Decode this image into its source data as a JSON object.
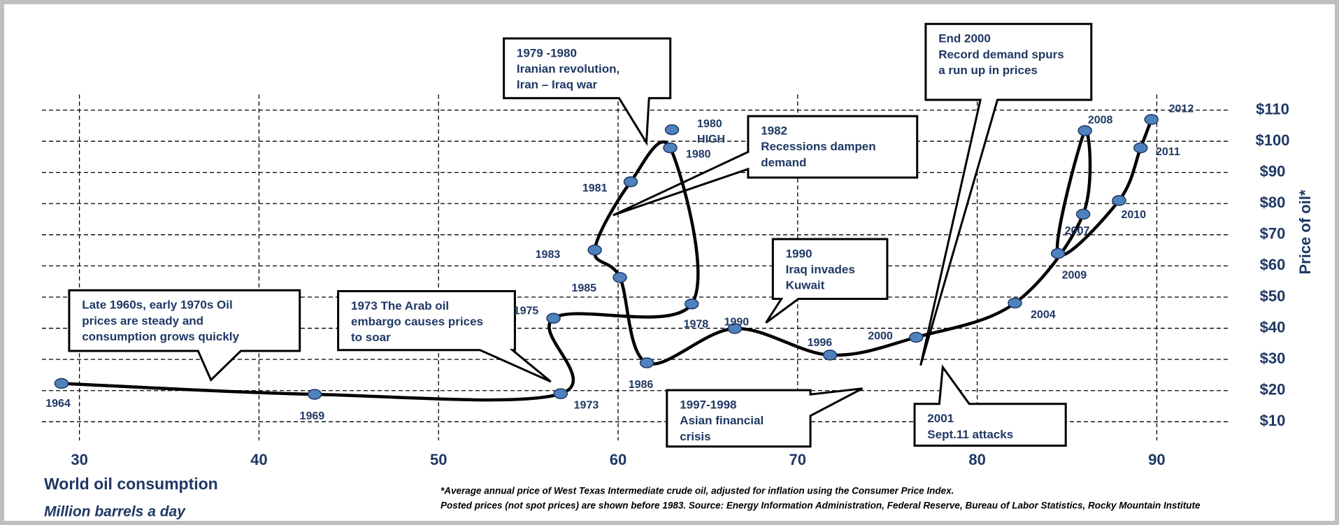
{
  "chart_data": {
    "type": "connected-scatter",
    "x_label": [
      "World oil consumption",
      "Million barrels a day"
    ],
    "y_label": "Price of oil*",
    "footnotes": [
      "*Average annual price of West Texas Intermediate crude oil, adjusted for inflation using the Consumer Price Index.",
      "Posted prices (not spot prices) are shown before 1983. Source: Energy Information Administration, Federal Reserve, Bureau of Labor Statistics, Rocky Mountain Institute"
    ],
    "point_labels": [
      "1964",
      "1969",
      "1973",
      "1975",
      "1978",
      "1980",
      "1981",
      "1983",
      "1985",
      "1986",
      "1990",
      "1996",
      "2000",
      "2004",
      "2007",
      "2008",
      "2009",
      "2010",
      "2011",
      "2012"
    ],
    "x": [
      29.0,
      43.1,
      56.8,
      56.4,
      64.1,
      62.9,
      60.7,
      58.7,
      60.1,
      61.6,
      66.5,
      71.8,
      76.6,
      82.1,
      85.9,
      86.0,
      84.5,
      87.9,
      89.1,
      89.7
    ],
    "values": [
      22.3,
      18.8,
      19.0,
      43.2,
      47.8,
      97.9,
      87.0,
      65.1,
      56.3,
      28.9,
      39.9,
      31.4,
      37.1,
      48.1,
      76.6,
      103.4,
      64.0,
      81.0,
      97.9,
      107.0
    ],
    "highlight": {
      "labels": [
        "1980",
        "HIGH"
      ],
      "x": 63.0,
      "value": 103.7
    },
    "color": "#4f81bd",
    "line_color": "#000000",
    "xlim": [
      28,
      95
    ],
    "xticks": [
      30,
      40,
      50,
      60,
      70,
      80,
      90
    ],
    "ylim": [
      5,
      115
    ],
    "yticks": [
      {
        "value": 10,
        "label": "$10"
      },
      {
        "value": 20,
        "label": "$20"
      },
      {
        "value": 30,
        "label": "$30"
      },
      {
        "value": 40,
        "label": "$40"
      },
      {
        "value": 50,
        "label": "$50"
      },
      {
        "value": 60,
        "label": "$60"
      },
      {
        "value": 70,
        "label": "$70"
      },
      {
        "value": 80,
        "label": "$80"
      },
      {
        "value": 90,
        "label": "$90"
      },
      {
        "value": 100,
        "label": "$100"
      },
      {
        "value": 110,
        "label": "$110"
      }
    ],
    "grid": true,
    "annotations": [
      {
        "lines": [
          "Late 1960s, early 1970s Oil",
          "prices are steady  and",
          "consumption grows quickly"
        ]
      },
      {
        "lines": [
          "1973 The Arab oil",
          "embargo causes prices",
          "to soar"
        ]
      },
      {
        "lines": [
          "1979 -1980",
          "Iranian revolution,",
          "Iran – Iraq war"
        ]
      },
      {
        "lines": [
          "1982",
          "Recessions dampen",
          "demand"
        ]
      },
      {
        "lines": [
          "1990",
          "Iraq invades",
          "Kuwait"
        ]
      },
      {
        "lines": [
          "End 2000",
          "Record demand spurs",
          "a run up  in prices"
        ]
      },
      {
        "lines": [
          "1997-1998",
          "Asian financial",
          "crisis"
        ]
      },
      {
        "lines": [
          "2001",
          "Sept.11 attacks"
        ]
      }
    ]
  }
}
